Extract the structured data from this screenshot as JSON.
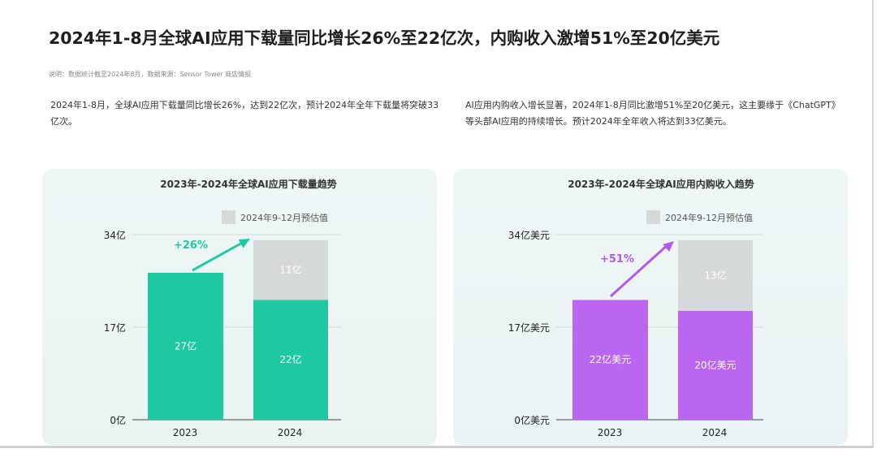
{
  "page": {
    "title": "2024年1-8月全球AI应用下载量同比增长26%至22亿次，内购收入激增51%至20亿美元",
    "note": "说明：数据统计截至2024年8月，数据来源：Sensor Tower 商店情报",
    "desc_left": "2024年1-8月，全球AI应用下载量同比增长26%，达到22亿次，预计2024年全年下载量将突破33亿次。",
    "desc_right": "AI应用内购收入增长显著，2024年1-8月同比激增51%至20亿美元，这主要缘于《ChatGPT》等头部AI应用的持续增长。预计2024年全年收入将达到33亿美元。"
  },
  "colors": {
    "downloads": "#1ec9a2",
    "revenue": "#bb66f0",
    "projection": "#d6d9d9",
    "growth_downloads": "#1ec9a2",
    "growth_revenue": "#b558ee"
  },
  "chart_data": [
    {
      "type": "bar",
      "title": "2023年-2024年全球AI应用下载量趋势",
      "categories": [
        "2023",
        "2024"
      ],
      "series": [
        {
          "values": [
            27,
            22
          ],
          "labels": [
            "27亿",
            "22亿"
          ]
        },
        {
          "name": "2024年9-12月预估值",
          "values": [
            0,
            11
          ],
          "labels": [
            "",
            "11亿"
          ]
        }
      ],
      "stacked": true,
      "yticks": [
        0,
        17,
        34
      ],
      "ytick_labels": [
        "0亿",
        "17亿",
        "34亿"
      ],
      "ylim": [
        0,
        34
      ],
      "growth_label": "+26%",
      "grid": true,
      "legend_position": "top-right"
    },
    {
      "type": "bar",
      "title": "2023年-2024年全球AI应用内购收入趋势",
      "categories": [
        "2023",
        "2024"
      ],
      "series": [
        {
          "values": [
            22,
            20
          ],
          "labels": [
            "22亿美元",
            "20亿美元"
          ]
        },
        {
          "name": "2024年9-12月预估值",
          "values": [
            0,
            13
          ],
          "labels": [
            "",
            "13亿"
          ]
        }
      ],
      "stacked": true,
      "yticks": [
        0,
        17,
        34
      ],
      "ytick_labels": [
        "0亿美元",
        "17亿美元",
        "34亿美元"
      ],
      "ylim": [
        0,
        34
      ],
      "growth_label": "+51%",
      "grid": true,
      "legend_position": "top-right"
    }
  ]
}
